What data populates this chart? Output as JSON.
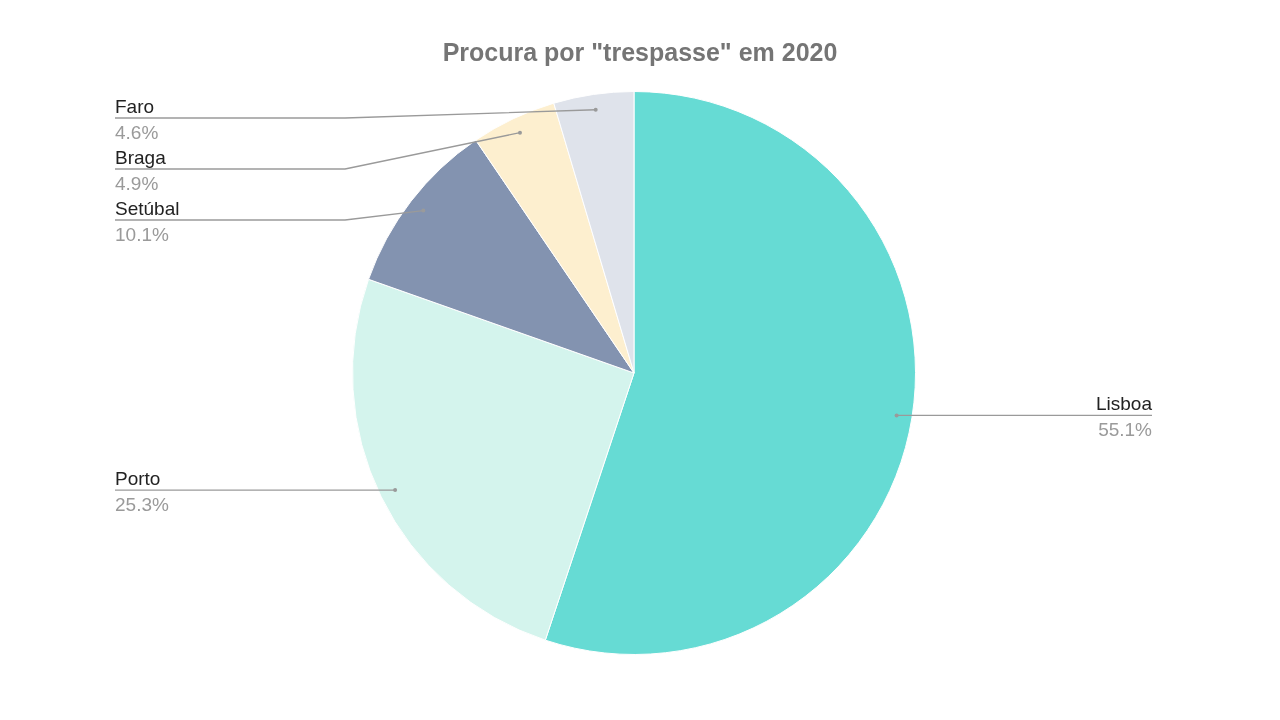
{
  "chart_data": {
    "type": "pie",
    "title": "Procura por \"trespasse\" em 2020",
    "categories": [
      "Lisboa",
      "Porto",
      "Setúbal",
      "Braga",
      "Faro"
    ],
    "values": [
      55.1,
      25.3,
      10.1,
      4.9,
      4.6
    ],
    "colors": [
      "#66dbd4",
      "#d4f4ed",
      "#8393b0",
      "#fdefcf",
      "#dfe3eb"
    ],
    "value_labels": [
      "55.1%",
      "25.3%",
      "10.1%",
      "4.9%",
      "4.6%"
    ],
    "legend": false
  }
}
